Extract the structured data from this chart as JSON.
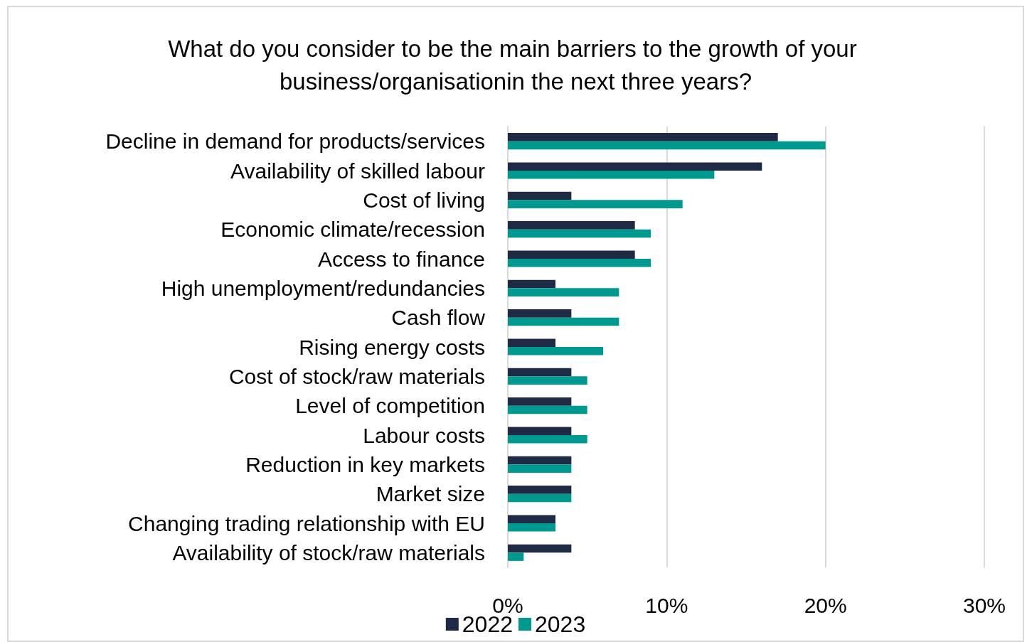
{
  "chart_data": {
    "type": "bar",
    "orientation": "horizontal",
    "title": "What do you consider to be the main barriers to the growth of your business/organisationin the next three years?",
    "categories": [
      "Decline in demand for products/services",
      "Availability of skilled labour",
      "Cost of living",
      "Economic climate/recession",
      "Access to finance",
      "High unemployment/redundancies",
      "Cash flow",
      "Rising energy costs",
      "Cost of stock/raw materials",
      "Level of competition",
      "Labour costs",
      "Reduction in key markets",
      "Market size",
      "Changing trading relationship with EU",
      "Availability of stock/raw materials"
    ],
    "series": [
      {
        "name": "2022",
        "color": "#1f2a44",
        "values": [
          17,
          16,
          4,
          8,
          8,
          3,
          4,
          3,
          4,
          4,
          4,
          4,
          4,
          3,
          4
        ]
      },
      {
        "name": "2023",
        "color": "#00998f",
        "values": [
          20,
          13,
          11,
          9,
          9,
          7,
          7,
          6,
          5,
          5,
          5,
          4,
          4,
          3,
          1
        ]
      }
    ],
    "xlim": [
      0,
      30
    ],
    "xticks": [
      {
        "value": 0,
        "label": "0%"
      },
      {
        "value": 10,
        "label": "10%"
      },
      {
        "value": 20,
        "label": "20%"
      },
      {
        "value": 30,
        "label": "30%"
      }
    ],
    "grid": "x",
    "legend": "bottom"
  }
}
